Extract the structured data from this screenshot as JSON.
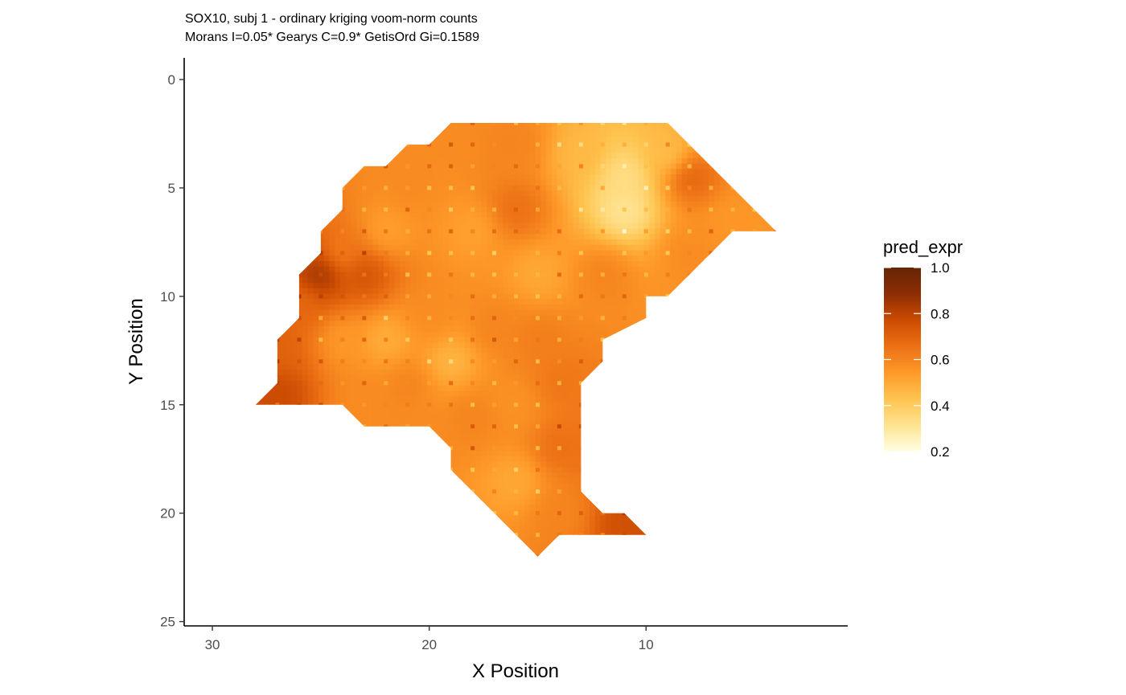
{
  "chart_data": {
    "type": "heatmap",
    "title": "SOX10, subj 1 - ordinary kriging voom-norm counts",
    "subtitle": "Morans I=0.05*  Gearys C=0.9*  GetisOrd Gi=0.1589",
    "xlabel": "X Position",
    "ylabel": "Y Position",
    "x_reversed": true,
    "y_reversed": true,
    "xlim": [
      31.3,
      0.7
    ],
    "ylim": [
      -1.0,
      25.2
    ],
    "x_ticks": [
      30,
      20,
      10
    ],
    "y_ticks": [
      0,
      5,
      10,
      15,
      20,
      25
    ],
    "legend": {
      "title": "pred_expr",
      "position": "right",
      "min": 0.2,
      "max": 1.0,
      "ticks": [
        1.0,
        0.8,
        0.6,
        0.4,
        0.2
      ],
      "tick_labels": [
        "1.0",
        "0.8",
        "0.6",
        "0.4",
        "0.2"
      ],
      "colors": [
        "#ffffe5",
        "#fee391",
        "#fec44f",
        "#fe9929",
        "#ec7014",
        "#cc4c02",
        "#8c2d04",
        "#662506"
      ]
    },
    "region_outline": [
      [
        19,
        2
      ],
      [
        9,
        2
      ],
      [
        4,
        7
      ],
      [
        6,
        7
      ],
      [
        9,
        10
      ],
      [
        10,
        10
      ],
      [
        10,
        11
      ],
      [
        12,
        12
      ],
      [
        12,
        13
      ],
      [
        13,
        14
      ],
      [
        13,
        19
      ],
      [
        12,
        20
      ],
      [
        11,
        20
      ],
      [
        10,
        21
      ],
      [
        14,
        21
      ],
      [
        15,
        22
      ],
      [
        19,
        18
      ],
      [
        19,
        17
      ],
      [
        20,
        16
      ],
      [
        23,
        16
      ],
      [
        24,
        15
      ],
      [
        28,
        15
      ],
      [
        27,
        14
      ],
      [
        27,
        12
      ],
      [
        26,
        11
      ],
      [
        26,
        9
      ],
      [
        25,
        8
      ],
      [
        25,
        7
      ],
      [
        24,
        6
      ],
      [
        24,
        5
      ],
      [
        23,
        4
      ],
      [
        22,
        4
      ],
      [
        21,
        3
      ],
      [
        20,
        3
      ]
    ],
    "surface_nodes": [
      {
        "x": 11,
        "y": 4.5,
        "value": 0.33
      },
      {
        "x": 11,
        "y": 6.0,
        "value": 0.3
      },
      {
        "x": 13,
        "y": 3.5,
        "value": 0.46
      },
      {
        "x": 9,
        "y": 3.5,
        "value": 0.44
      },
      {
        "x": 8,
        "y": 4.5,
        "value": 0.7
      },
      {
        "x": 6,
        "y": 6.5,
        "value": 0.55
      },
      {
        "x": 8,
        "y": 8.0,
        "value": 0.58
      },
      {
        "x": 12,
        "y": 9.0,
        "value": 0.6
      },
      {
        "x": 16,
        "y": 3.0,
        "value": 0.6
      },
      {
        "x": 16,
        "y": 6.0,
        "value": 0.66
      },
      {
        "x": 18,
        "y": 7.0,
        "value": 0.52
      },
      {
        "x": 21,
        "y": 5.0,
        "value": 0.58
      },
      {
        "x": 22,
        "y": 7.0,
        "value": 0.52
      },
      {
        "x": 24,
        "y": 8.0,
        "value": 0.62
      },
      {
        "x": 25,
        "y": 9.0,
        "value": 0.86
      },
      {
        "x": 23,
        "y": 9.0,
        "value": 0.75
      },
      {
        "x": 26,
        "y": 10.5,
        "value": 0.68
      },
      {
        "x": 24,
        "y": 12.0,
        "value": 0.54
      },
      {
        "x": 22,
        "y": 12.0,
        "value": 0.48
      },
      {
        "x": 20,
        "y": 11.0,
        "value": 0.58
      },
      {
        "x": 19,
        "y": 13.0,
        "value": 0.46
      },
      {
        "x": 17,
        "y": 11.5,
        "value": 0.6
      },
      {
        "x": 15,
        "y": 9.0,
        "value": 0.5
      },
      {
        "x": 15,
        "y": 12.0,
        "value": 0.62
      },
      {
        "x": 14,
        "y": 14.0,
        "value": 0.64
      },
      {
        "x": 16,
        "y": 15.0,
        "value": 0.56
      },
      {
        "x": 18,
        "y": 15.5,
        "value": 0.6
      },
      {
        "x": 14,
        "y": 17.0,
        "value": 0.66
      },
      {
        "x": 16,
        "y": 18.5,
        "value": 0.5
      },
      {
        "x": 14,
        "y": 20.0,
        "value": 0.6
      },
      {
        "x": 11,
        "y": 20.5,
        "value": 0.76
      },
      {
        "x": 27,
        "y": 14.5,
        "value": 0.78
      },
      {
        "x": 27,
        "y": 12.5,
        "value": 0.7
      },
      {
        "x": 21,
        "y": 14.0,
        "value": 0.6
      },
      {
        "x": 23,
        "y": 15.0,
        "value": 0.58
      }
    ]
  }
}
